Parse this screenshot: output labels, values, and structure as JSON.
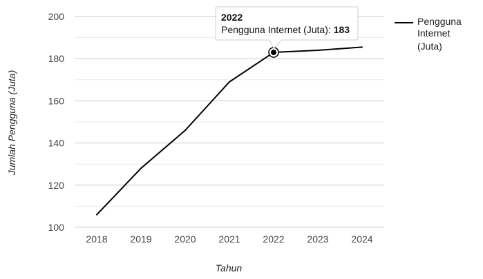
{
  "chart_data": {
    "type": "line",
    "x": [
      "2018",
      "2019",
      "2020",
      "2021",
      "2022",
      "2023",
      "2024"
    ],
    "series": [
      {
        "name": "Pengguna Internet (Juta)",
        "values": [
          106,
          128,
          146,
          169,
          183,
          184,
          185.5
        ],
        "color": "#000000"
      }
    ],
    "xlabel": "Tahun",
    "ylabel": "Jumlah Pengguna (Juta)",
    "ylim": [
      100,
      200
    ],
    "yticks": [
      100,
      120,
      140,
      160,
      180,
      200
    ],
    "grid": true,
    "legend": {
      "placement": "top-right",
      "lines": [
        "Pengguna",
        "Internet",
        "(Juta)"
      ]
    },
    "tooltip": {
      "title": "2022",
      "label": "Pengguna Internet (Juta): ",
      "value": "183",
      "point_index": 4
    }
  }
}
